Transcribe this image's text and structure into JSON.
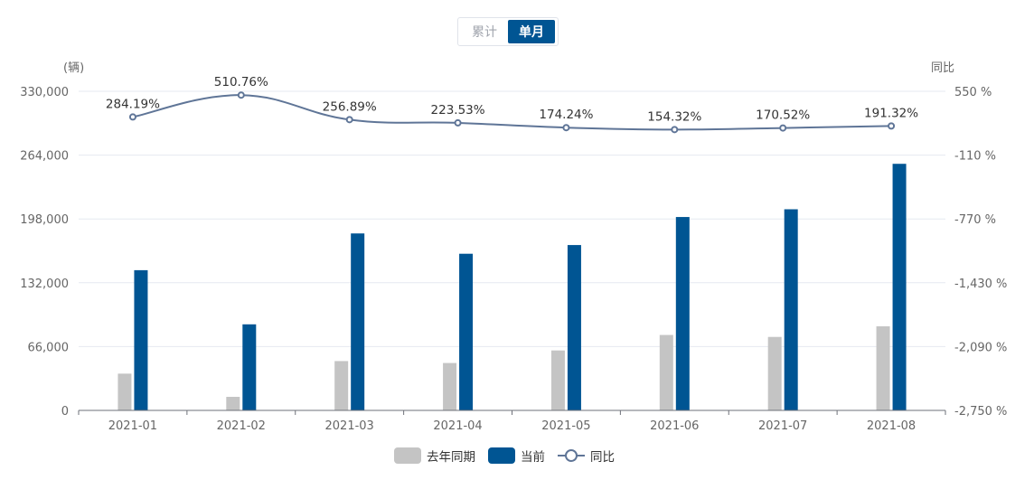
{
  "toggle": {
    "options": [
      "累计",
      "单月"
    ],
    "selected": "单月"
  },
  "chart_data": {
    "type": "bar+line",
    "left_axis_title": "(辆)",
    "right_axis_title": "同比",
    "categories": [
      "2021-01",
      "2021-02",
      "2021-03",
      "2021-04",
      "2021-05",
      "2021-06",
      "2021-07",
      "2021-08"
    ],
    "left_axis": {
      "min": 0,
      "max": 330000,
      "ticks": [
        "0",
        "66,000",
        "132,000",
        "198,000",
        "264,000",
        "330,000"
      ]
    },
    "right_axis": {
      "min": -2750,
      "max": 550,
      "ticks": [
        "-2,750 %",
        "-2,090 %",
        "-1,430 %",
        "-770 %",
        "-110 %",
        "550 %"
      ]
    },
    "series": [
      {
        "name": "去年同期",
        "type": "bar",
        "color": "#c4c4c4",
        "values": [
          38000,
          14000,
          51000,
          49000,
          62000,
          78000,
          76000,
          87000
        ]
      },
      {
        "name": "当前",
        "type": "bar",
        "color": "#005593",
        "values": [
          145000,
          89000,
          183000,
          162000,
          171000,
          200000,
          208000,
          255000
        ]
      },
      {
        "name": "同比",
        "type": "line",
        "color": "#5f7597",
        "values": [
          284.19,
          510.76,
          256.89,
          223.53,
          174.24,
          154.32,
          170.52,
          191.32
        ],
        "labels": [
          "284.19%",
          "510.76%",
          "256.89%",
          "223.53%",
          "174.24%",
          "154.32%",
          "170.52%",
          "191.32%"
        ]
      }
    ],
    "grid": true,
    "legend_position": "bottom"
  },
  "legend": {
    "items": [
      "去年同期",
      "当前",
      "同比"
    ]
  }
}
